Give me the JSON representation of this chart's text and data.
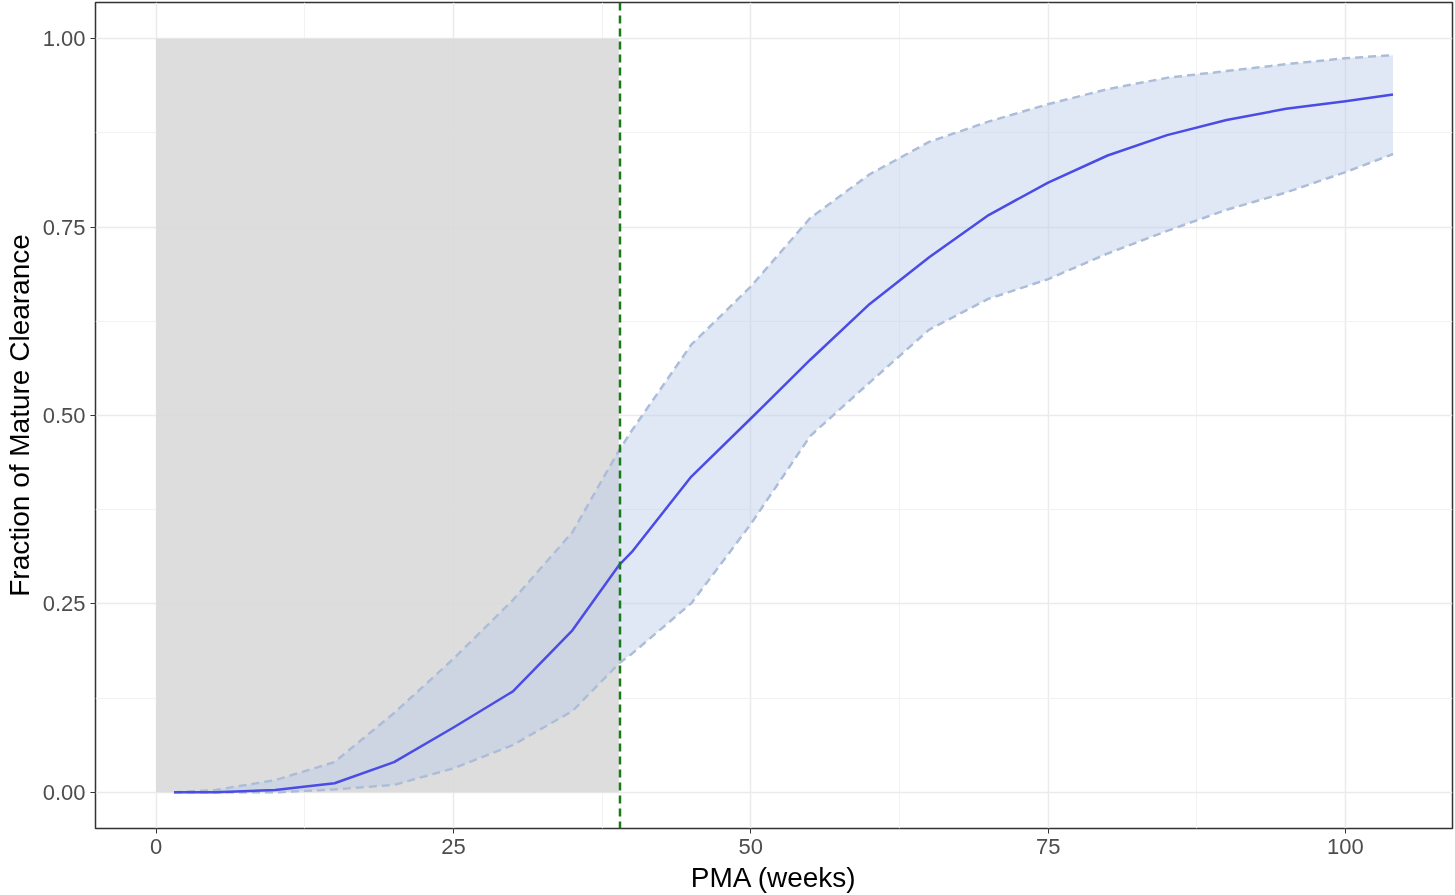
{
  "chart_data": {
    "type": "line",
    "xlabel": "PMA (weeks)",
    "ylabel": "Fraction of Mature Clearance",
    "xlim": [
      -5.1,
      109
    ],
    "ylim": [
      -0.048,
      1.048
    ],
    "xticks": [
      0,
      25,
      50,
      75,
      100
    ],
    "yticks": [
      {
        "value": 0,
        "label": "0.00"
      },
      {
        "value": 0.25,
        "label": "0.25"
      },
      {
        "value": 0.5,
        "label": "0.50"
      },
      {
        "value": 0.75,
        "label": "0.75"
      },
      {
        "value": 1,
        "label": "1.00"
      }
    ],
    "grid": true,
    "line_style": "solid",
    "marker": "none",
    "ref_lines": [
      {
        "axis": "x",
        "value": 39,
        "color": "#1a7a1a",
        "line_style": "dashed"
      }
    ],
    "series": [
      {
        "type": "area",
        "color": "#d9d9d9",
        "x": [
          0,
          38.9
        ],
        "values": [
          1,
          1
        ]
      },
      {
        "type": "line",
        "line_style": "dashed",
        "color": "#a9b9d6",
        "x": [
          1.5,
          5,
          10,
          15,
          20,
          25,
          30,
          35,
          38.9,
          40,
          45,
          50,
          55,
          60,
          65,
          70,
          75,
          80,
          85,
          90,
          95,
          100,
          104
        ],
        "values": [
          0,
          0,
          0,
          0.004,
          0.01,
          0.032,
          0.063,
          0.108,
          0.171,
          0.184,
          0.251,
          0.356,
          0.473,
          0.544,
          0.614,
          0.655,
          0.681,
          0.715,
          0.745,
          0.773,
          0.796,
          0.823,
          0.847
        ]
      },
      {
        "type": "line",
        "line_style": "dashed",
        "color": "#a9b9d6",
        "x": [
          1.5,
          5,
          10,
          15,
          20,
          25,
          30,
          35,
          38.9,
          40,
          45,
          50,
          55,
          60,
          65,
          70,
          75,
          80,
          85,
          90,
          95,
          100,
          104
        ],
        "values": [
          0,
          0.003,
          0.016,
          0.04,
          0.105,
          0.177,
          0.255,
          0.345,
          0.453,
          0.48,
          0.594,
          0.671,
          0.762,
          0.82,
          0.863,
          0.89,
          0.913,
          0.933,
          0.948,
          0.957,
          0.966,
          0.974,
          0.978
        ]
      },
      {
        "color": "#4b4be6",
        "x": [
          1.5,
          5,
          10,
          15,
          20,
          25,
          30,
          35,
          38.9,
          40,
          45,
          50,
          55,
          60,
          65,
          70,
          75,
          80,
          85,
          90,
          95,
          100,
          104
        ],
        "values": [
          0,
          0,
          0.003,
          0.012,
          0.04,
          0.086,
          0.134,
          0.215,
          0.301,
          0.319,
          0.419,
          0.496,
          0.574,
          0.648,
          0.71,
          0.766,
          0.809,
          0.845,
          0.872,
          0.892,
          0.907,
          0.917,
          0.926
        ],
        "lower": [
          0,
          0,
          0,
          0.004,
          0.01,
          0.032,
          0.063,
          0.108,
          0.171,
          0.184,
          0.251,
          0.356,
          0.473,
          0.544,
          0.614,
          0.655,
          0.681,
          0.715,
          0.745,
          0.773,
          0.796,
          0.823,
          0.847
        ],
        "upper": [
          0,
          0.003,
          0.016,
          0.04,
          0.105,
          0.177,
          0.255,
          0.345,
          0.453,
          0.48,
          0.594,
          0.671,
          0.762,
          0.82,
          0.863,
          0.89,
          0.913,
          0.933,
          0.948,
          0.957,
          0.966,
          0.974,
          0.978
        ]
      }
    ]
  }
}
